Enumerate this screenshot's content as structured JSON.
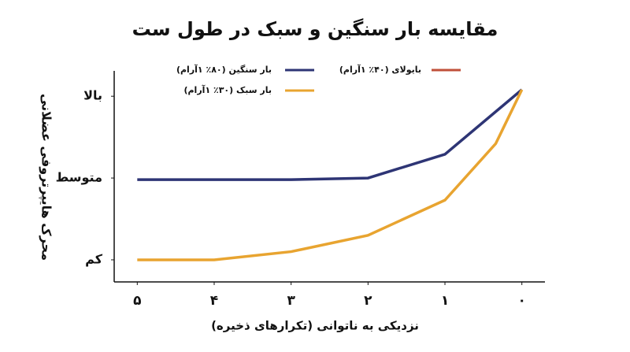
{
  "chart_data": {
    "type": "line",
    "title": "مقایسه بار سنگین و سبک در طول ست",
    "x_label": "نزدیکی به ناتوانی (تکرارهای ذخیره)",
    "y_label": "محرک هایپرتروفی عضلانی",
    "xlim": [
      5.3,
      -0.3
    ],
    "xticks": [
      {
        "value": 5,
        "label": "۵"
      },
      {
        "value": 4,
        "label": "۴"
      },
      {
        "value": 3,
        "label": "۳"
      },
      {
        "value": 2,
        "label": "۲"
      },
      {
        "value": 1,
        "label": "۱"
      },
      {
        "value": 0,
        "label": "۰"
      }
    ],
    "ylim": [
      0.73,
      3.31
    ],
    "yticks": [
      {
        "value": 1,
        "label": "کم"
      },
      {
        "value": 2,
        "label": "متوسط"
      },
      {
        "value": 3,
        "label": "بالا"
      }
    ],
    "series": [
      {
        "name": "بار سنگین (۸۰٪ ۱آرام)",
        "color": "#2e3575",
        "x": [
          5,
          4,
          3,
          2,
          1,
          0
        ],
        "values": [
          1.98,
          1.98,
          1.98,
          2.0,
          2.29,
          3.08
        ]
      },
      {
        "name": "بار سبک (۳۰٪ ۱آرام)",
        "color": "#e8a430",
        "x": [
          5,
          4,
          3,
          2,
          1,
          0.34,
          0
        ],
        "values": [
          1.0,
          1.0,
          1.1,
          1.3,
          1.73,
          2.42,
          3.08
        ]
      },
      {
        "name": "بایولای (۴۰٪ ۱آرام)",
        "color": "#c0503a",
        "x": [],
        "values": []
      }
    ]
  }
}
